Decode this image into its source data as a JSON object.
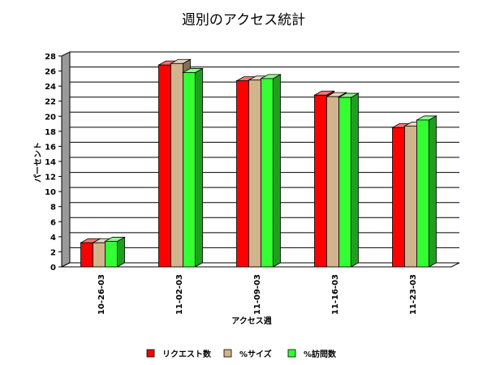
{
  "chart_data": {
    "type": "bar",
    "title": "週別のアクセス統計",
    "xlabel": "アクセス週",
    "ylabel": "パーセント",
    "categories": [
      "10-26-03",
      "11-02-03",
      "11-09-03",
      "11-16-03",
      "11-23-03"
    ],
    "ylim": [
      0,
      28
    ],
    "yticks": [
      0,
      2,
      4,
      6,
      8,
      10,
      12,
      14,
      16,
      18,
      20,
      22,
      24,
      26,
      28
    ],
    "grid": true,
    "legend": "bottom",
    "series": [
      {
        "name": "リクエスト数",
        "color": "#ff0000",
        "values": [
          3.2,
          26.8,
          24.7,
          22.8,
          18.5
        ]
      },
      {
        "name": "%サイズ",
        "color": "#d2b48c",
        "values": [
          3.2,
          27.0,
          24.8,
          22.6,
          18.7
        ]
      },
      {
        "name": "%訪問数",
        "color": "#33ff33",
        "values": [
          3.4,
          25.8,
          25.0,
          22.5,
          19.5
        ]
      }
    ]
  }
}
